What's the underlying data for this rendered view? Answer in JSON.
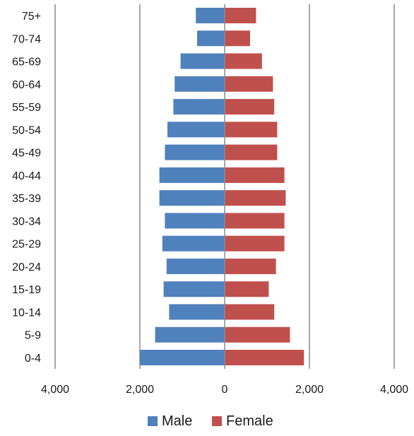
{
  "chart_data": {
    "type": "bar",
    "orientation": "horizontal",
    "stacking": "diverging",
    "categories": [
      "0-4",
      "5-9",
      "10-14",
      "15-19",
      "20-24",
      "25-29",
      "30-34",
      "35-39",
      "40-44",
      "45-49",
      "50-54",
      "55-59",
      "60-64",
      "65-69",
      "70-74",
      "75+"
    ],
    "series": [
      {
        "name": "Male",
        "color": "#4f81bd",
        "values": [
          2000,
          1640,
          1310,
          1440,
          1370,
          1470,
          1410,
          1540,
          1540,
          1410,
          1350,
          1210,
          1180,
          1040,
          650,
          680
        ]
      },
      {
        "name": "Female",
        "color": "#c0504d",
        "values": [
          1870,
          1540,
          1170,
          1040,
          1210,
          1410,
          1410,
          1440,
          1410,
          1240,
          1240,
          1170,
          1140,
          880,
          600,
          740
        ]
      }
    ],
    "xlim": [
      -4000,
      4000
    ],
    "xticks": [
      -4000,
      -2000,
      0,
      2000,
      4000
    ],
    "xtick_labels": [
      "4,000",
      "2,000",
      "0",
      "2,000",
      "4,000"
    ],
    "grid": "vertical",
    "legend": {
      "position": "bottom",
      "items": [
        "Male",
        "Female"
      ]
    },
    "title": "",
    "xlabel": "",
    "ylabel": ""
  }
}
